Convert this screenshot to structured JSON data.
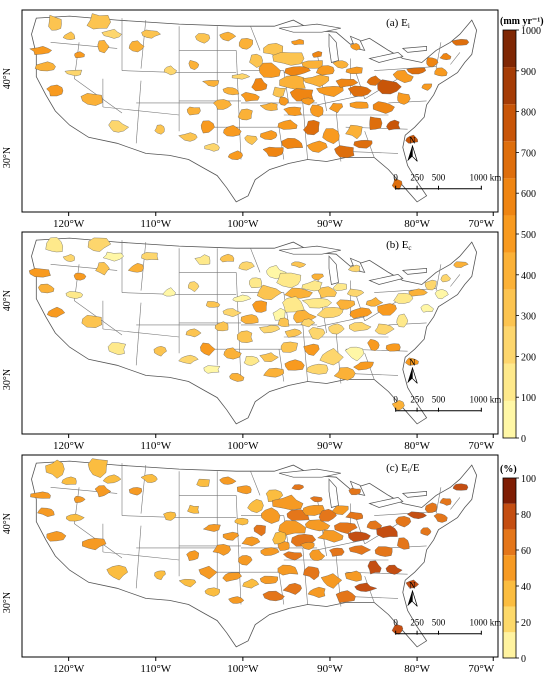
{
  "panels": [
    {
      "id": "a",
      "label": "(a) E",
      "sub": "i",
      "colorbar_title": "(mm yr⁻¹)",
      "ticks": [
        "0",
        "100",
        "200",
        "300",
        "400",
        "500",
        "600",
        "700",
        "800",
        "900",
        "1000"
      ],
      "palette": "mm",
      "intensity": "mixed"
    },
    {
      "id": "b",
      "label": "(b) E",
      "sub": "c",
      "colorbar_title": "",
      "ticks": [],
      "palette": "mm",
      "intensity": "low"
    },
    {
      "id": "c",
      "label": "(c) E",
      "sub": "i",
      "label_tail": "/E",
      "colorbar_title": "(%)",
      "ticks": [
        "0",
        "20",
        "40",
        "60",
        "80",
        "100"
      ],
      "palette": "pct",
      "intensity": "high"
    }
  ],
  "lat_labels": [
    "40°N",
    "30°N"
  ],
  "lon_labels": [
    "120°W",
    "110°W",
    "100°W",
    "90°W",
    "80°W",
    "70°W"
  ],
  "scalebar": {
    "ticks": [
      "0",
      "250",
      "500",
      "1000 km"
    ],
    "north": "N"
  },
  "colors": {
    "mm": [
      "#fff7a6",
      "#fee98b",
      "#fdd66d",
      "#fcc450",
      "#fbb137",
      "#f89a1f",
      "#ef8512",
      "#de6e0c",
      "#c85508",
      "#a53c06",
      "#7f2704"
    ],
    "pct": [
      "#fff3a0",
      "#fdd96a",
      "#fbbd40",
      "#f69a23",
      "#e4761a",
      "#c44e12",
      "#7f1d04"
    ]
  }
}
